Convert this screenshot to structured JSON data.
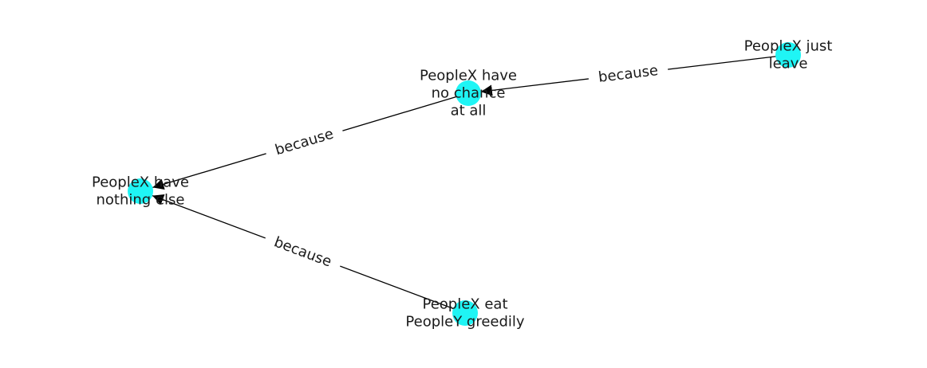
{
  "node_color": "#1ff5f5",
  "edge_color": "#000000",
  "nodes": [
    {
      "id": "n1",
      "lines": [
        "PeopleX have",
        "nothing else"
      ]
    },
    {
      "id": "n2",
      "lines": [
        "PeopleX have",
        "no chance",
        "at all"
      ]
    },
    {
      "id": "n3",
      "lines": [
        "PeopleX just",
        "leave"
      ]
    },
    {
      "id": "n4",
      "lines": [
        "PeopleX eat",
        "PeopleY greedily"
      ]
    }
  ],
  "edges": [
    {
      "from": "n2",
      "to": "n1",
      "label": "because"
    },
    {
      "from": "n3",
      "to": "n2",
      "label": "because"
    },
    {
      "from": "n4",
      "to": "n1",
      "label": "because"
    }
  ]
}
